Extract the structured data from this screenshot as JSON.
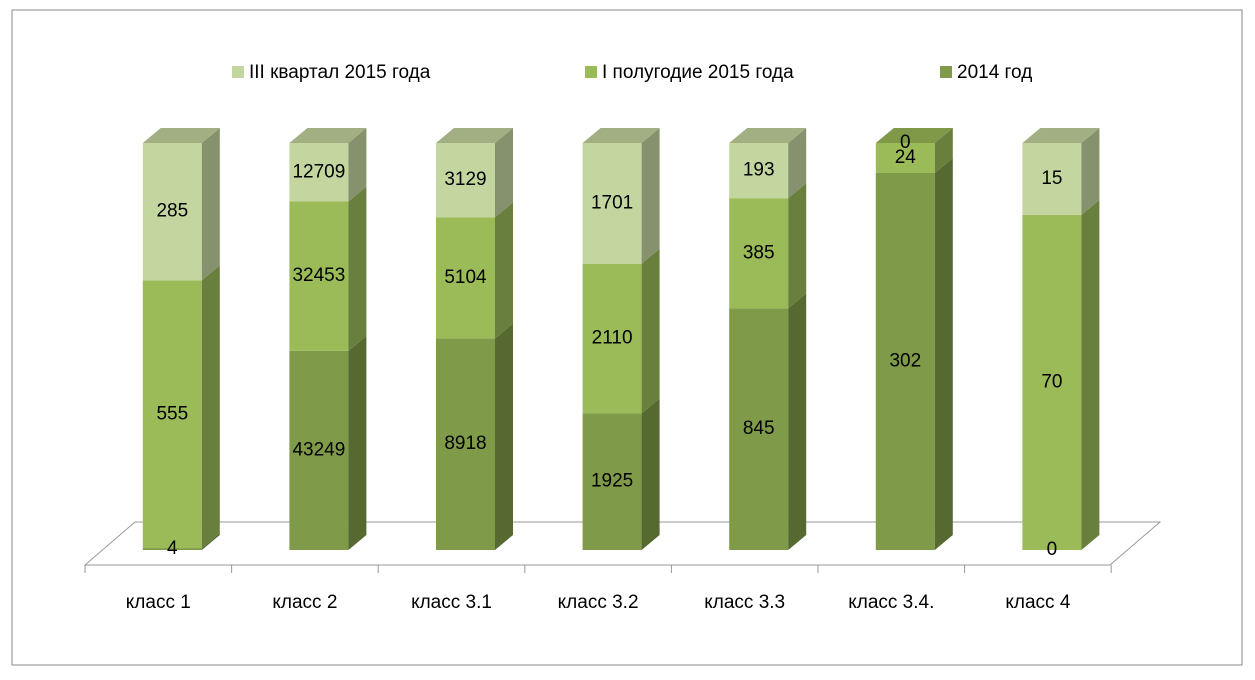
{
  "chart_data": {
    "type": "bar",
    "stacked_percent": true,
    "categories": [
      "класс 1",
      "класс 2",
      "класс 3.1",
      "класс 3.2",
      "класс 3.3",
      "класс 3.4.",
      "класс 4"
    ],
    "series": [
      {
        "name": "2014 год",
        "color": "#7f9a48",
        "values": [
          4,
          43249,
          8918,
          1925,
          845,
          302,
          0
        ]
      },
      {
        "name": "I полугодие 2015 года",
        "color": "#9bbb59",
        "values": [
          555,
          32453,
          5104,
          2110,
          385,
          24,
          70
        ]
      },
      {
        "name": "III квартал 2015 года",
        "color": "#c4d6a0",
        "values": [
          285,
          12709,
          3129,
          1701,
          193,
          0,
          15
        ]
      }
    ],
    "legend": "top"
  }
}
